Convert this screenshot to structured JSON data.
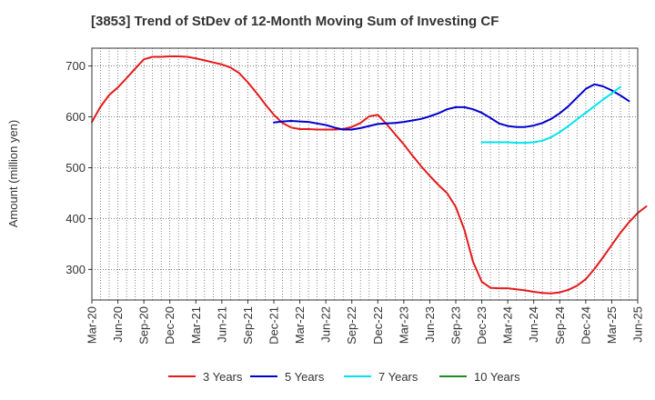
{
  "chart_data": {
    "type": "line",
    "title": "[3853]  Trend of StDev of 12-Month Moving Sum of Investing CF",
    "xlabel": "",
    "ylabel": "Amount (million yen)",
    "ylim": [
      240,
      735
    ],
    "yticks": [
      300,
      400,
      500,
      600,
      700
    ],
    "xticks": [
      "Mar-20",
      "Jun-20",
      "Sep-20",
      "Dec-20",
      "Mar-21",
      "Jun-21",
      "Sep-21",
      "Dec-21",
      "Mar-22",
      "Jun-22",
      "Sep-22",
      "Dec-22",
      "Mar-23",
      "Jun-23",
      "Sep-23",
      "Dec-23",
      "Mar-24",
      "Jun-24",
      "Sep-24",
      "Dec-24",
      "Mar-25",
      "Jun-25"
    ],
    "grid": true,
    "legend_position": "bottom",
    "series": [
      {
        "name": "3 Years",
        "color": "#e41a1c",
        "start": "Mar-20",
        "values": [
          590,
          620,
          643,
          658,
          676,
          695,
          713,
          718,
          718,
          719,
          719,
          718,
          715,
          711,
          707,
          703,
          697,
          686,
          668,
          647,
          625,
          604,
          588,
          579,
          576,
          576,
          575,
          575,
          575,
          576,
          580,
          588,
          601,
          604,
          586,
          566,
          546,
          524,
          503,
          484,
          466,
          450,
          423,
          378,
          315,
          276,
          264,
          263,
          263,
          261,
          259,
          256,
          254,
          253,
          255,
          260,
          268,
          281,
          301,
          324,
          348,
          372,
          393,
          411,
          424
        ]
      },
      {
        "name": "5 Years",
        "color": "#0000cd",
        "start": "Dec-21",
        "values": [
          589,
          591,
          592,
          591,
          590,
          587,
          584,
          579,
          575,
          575,
          578,
          582,
          586,
          587,
          588,
          590,
          593,
          596,
          601,
          607,
          615,
          619,
          619,
          615,
          608,
          598,
          587,
          582,
          580,
          580,
          583,
          588,
          596,
          607,
          621,
          638,
          655,
          664,
          660,
          652,
          642,
          631
        ]
      },
      {
        "name": "7 Years",
        "color": "#00e5ee",
        "start": "Dec-23",
        "values": [
          550,
          550,
          550,
          550,
          549,
          549,
          550,
          553,
          560,
          570,
          582,
          595,
          608,
          621,
          634,
          646,
          659
        ]
      },
      {
        "name": "10 Years",
        "color": "#228b22",
        "start": "Dec-23",
        "values": []
      }
    ]
  }
}
